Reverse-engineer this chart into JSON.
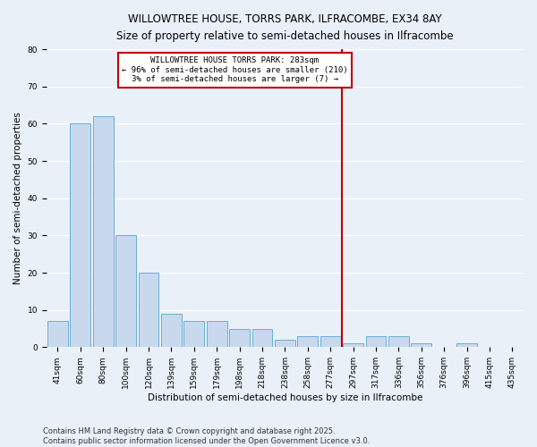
{
  "title1": "WILLOWTREE HOUSE, TORRS PARK, ILFRACOMBE, EX34 8AY",
  "title2": "Size of property relative to semi-detached houses in Ilfracombe",
  "xlabel": "Distribution of semi-detached houses by size in Ilfracombe",
  "ylabel": "Number of semi-detached properties",
  "categories": [
    "41sqm",
    "60sqm",
    "80sqm",
    "100sqm",
    "120sqm",
    "139sqm",
    "159sqm",
    "179sqm",
    "198sqm",
    "218sqm",
    "238sqm",
    "258sqm",
    "277sqm",
    "297sqm",
    "317sqm",
    "336sqm",
    "356sqm",
    "376sqm",
    "396sqm",
    "415sqm",
    "435sqm"
  ],
  "values": [
    7,
    60,
    62,
    30,
    20,
    9,
    7,
    7,
    5,
    5,
    2,
    3,
    3,
    1,
    3,
    3,
    1,
    0,
    1,
    0,
    0
  ],
  "bar_color": "#c8d9ed",
  "bar_edge_color": "#6baed6",
  "vline_color": "#c00000",
  "annotation_box_text": "WILLOWTREE HOUSE TORRS PARK: 283sqm\n← 96% of semi-detached houses are smaller (210)\n3% of semi-detached houses are larger (7) →",
  "ylim": [
    0,
    80
  ],
  "yticks": [
    0,
    10,
    20,
    30,
    40,
    50,
    60,
    70,
    80
  ],
  "footer_text": "Contains HM Land Registry data © Crown copyright and database right 2025.\nContains public sector information licensed under the Open Government Licence v3.0.",
  "background_color": "#eaf0f8",
  "grid_color": "#ffffff",
  "title1_fontsize": 8.5,
  "title2_fontsize": 8.5,
  "axis_label_fontsize": 7.5,
  "tick_fontsize": 6.5,
  "annotation_fontsize": 6.5,
  "footer_fontsize": 6.0
}
